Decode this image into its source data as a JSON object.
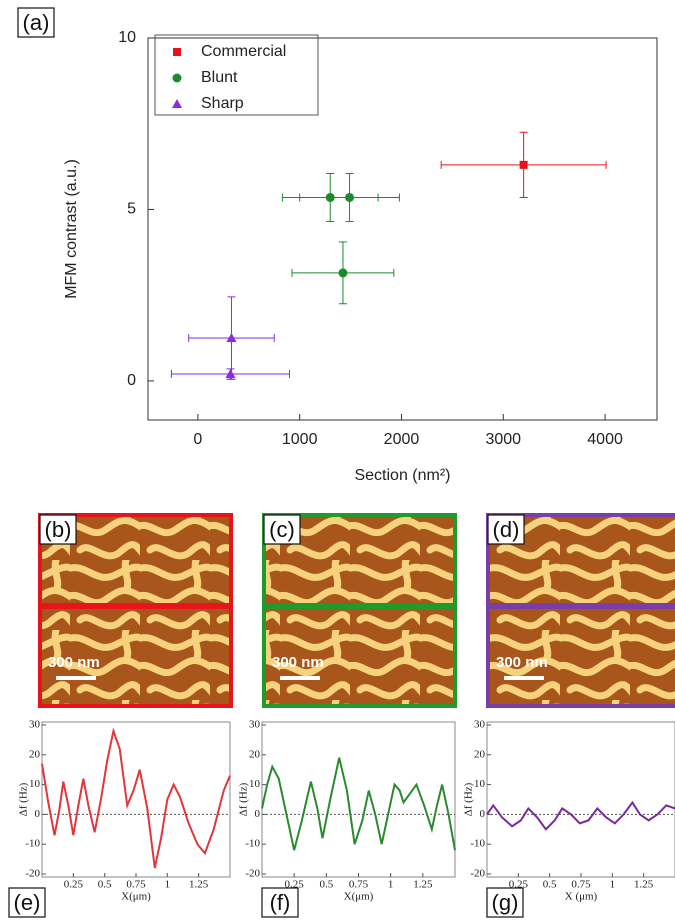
{
  "panel_labels": [
    "(a)",
    "(b)",
    "(c)",
    "(d)",
    "(e)",
    "(f)",
    "(g)"
  ],
  "images": [
    {
      "scale": "300 nm",
      "color": "#e8141c"
    },
    {
      "scale": "300 nm",
      "color": "#1f9a2b"
    },
    {
      "scale": "300 nm",
      "color": "#7a3ea8"
    }
  ],
  "chart_data": [
    {
      "type": "scatter",
      "xlabel": "Section (nm²)",
      "ylabel": "MFM contrast (a.u.)",
      "xlim": [
        -490,
        4510
      ],
      "ylim": [
        -1.14,
        10
      ],
      "xticks": [
        0,
        1000,
        2000,
        3000,
        4000
      ],
      "yticks": [
        0,
        5,
        10
      ],
      "legend": "upper left",
      "series": [
        {
          "name": "Commercial",
          "color": "#e8141c",
          "marker": "square",
          "x": [
            3200
          ],
          "values": [
            6.3
          ],
          "xerr": [
            810
          ],
          "yerr": [
            0.95
          ]
        },
        {
          "name": "Blunt",
          "color": "#1f8a2b",
          "marker": "circle",
          "x": [
            1300,
            1490,
            1425
          ],
          "values": [
            5.35,
            5.35,
            3.15
          ],
          "xerr": [
            470,
            490,
            500
          ],
          "yerr": [
            0.7,
            0.7,
            0.9
          ]
        },
        {
          "name": "Sharp",
          "color": "#8a2be2",
          "marker": "triangle",
          "x": [
            330,
            320
          ],
          "values": [
            1.25,
            0.2
          ],
          "xerr": [
            420,
            580
          ],
          "yerr": [
            1.2,
            0.15
          ]
        }
      ]
    },
    {
      "type": "line",
      "xlabel": "X(μm)",
      "ylabel": "Δf (Hz)",
      "xlim": [
        0,
        1.5
      ],
      "ylim": [
        -21,
        31
      ],
      "xticks": [
        0.25,
        0.5,
        0.75,
        1,
        1.25
      ],
      "yticks": [
        -20,
        -10,
        0,
        10,
        20,
        30
      ],
      "color": "#e0373b",
      "x": [
        0,
        0.05,
        0.1,
        0.14,
        0.17,
        0.21,
        0.25,
        0.29,
        0.33,
        0.37,
        0.42,
        0.47,
        0.52,
        0.57,
        0.62,
        0.68,
        0.73,
        0.78,
        0.84,
        0.9,
        0.95,
        1.0,
        1.05,
        1.1,
        1.17,
        1.24,
        1.3,
        1.37,
        1.45,
        1.5
      ],
      "values": [
        17,
        4,
        -7,
        2,
        11,
        3,
        -7,
        3,
        12,
        3,
        -6,
        5,
        18,
        28,
        22,
        3,
        8,
        15,
        2,
        -18,
        -8,
        5,
        10,
        6,
        -3,
        -10,
        -13,
        -5,
        8,
        13
      ]
    },
    {
      "type": "line",
      "xlabel": "X(μm)",
      "ylabel": "Δf (Hz)",
      "xlim": [
        0,
        1.5
      ],
      "ylim": [
        -21,
        31
      ],
      "xticks": [
        0.25,
        0.5,
        0.75,
        1,
        1.25
      ],
      "yticks": [
        -20,
        -10,
        0,
        10,
        20,
        30
      ],
      "color": "#2b8a2e",
      "x": [
        0,
        0.04,
        0.08,
        0.13,
        0.19,
        0.25,
        0.31,
        0.38,
        0.43,
        0.47,
        0.53,
        0.6,
        0.66,
        0.72,
        0.78,
        0.83,
        0.88,
        0.93,
        0.98,
        1.03,
        1.07,
        1.1,
        1.15,
        1.2,
        1.26,
        1.32,
        1.36,
        1.4,
        1.45,
        1.5
      ],
      "values": [
        2,
        10,
        16,
        12,
        0,
        -12,
        -2,
        11,
        2,
        -8,
        5,
        19,
        8,
        -10,
        -2,
        8,
        0,
        -10,
        0,
        10,
        8,
        4,
        7,
        10,
        3,
        -5,
        3,
        10,
        0,
        -12
      ]
    },
    {
      "type": "line",
      "xlabel": "X (μm)",
      "ylabel": "Δf (Hz)",
      "xlim": [
        0,
        1.5
      ],
      "ylim": [
        -21,
        31
      ],
      "xticks": [
        0.25,
        0.5,
        0.75,
        1,
        1.25
      ],
      "yticks": [
        -20,
        -10,
        0,
        10,
        20,
        30
      ],
      "color": "#7a2a9a",
      "x": [
        0,
        0.05,
        0.12,
        0.2,
        0.27,
        0.33,
        0.4,
        0.47,
        0.54,
        0.6,
        0.67,
        0.74,
        0.81,
        0.88,
        0.95,
        1.02,
        1.09,
        1.16,
        1.22,
        1.29,
        1.36,
        1.43,
        1.5
      ],
      "values": [
        0,
        3,
        -1,
        -4,
        -2,
        2,
        -1,
        -5,
        -2,
        2,
        0,
        -3,
        -2,
        2,
        -1,
        -3,
        0,
        4,
        0,
        -2,
        0,
        3,
        2
      ]
    }
  ]
}
